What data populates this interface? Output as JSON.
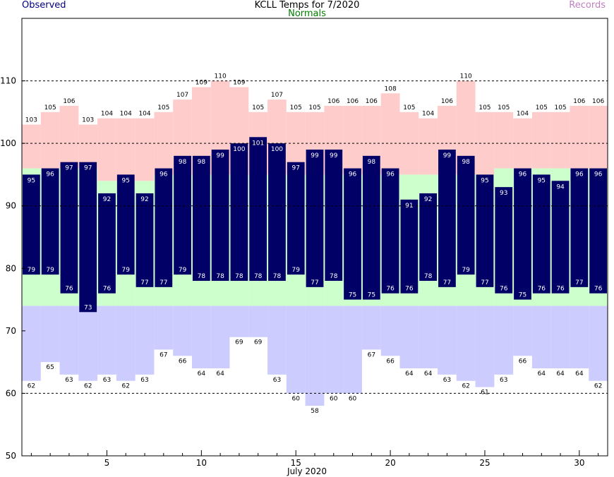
{
  "chart_data": {
    "type": "bar",
    "title": "KCLL Temps for 7/2020",
    "legend": {
      "observed": "Observed",
      "normals": "Normals",
      "records": "Records",
      "placement": "top"
    },
    "xlabel": "July 2020",
    "ylabel": "",
    "ylim": [
      50,
      120
    ],
    "xlim": [
      0.5,
      31.5
    ],
    "yticks": [
      50,
      60,
      70,
      80,
      90,
      100,
      110
    ],
    "xticks": [
      5,
      10,
      15,
      20,
      25,
      30
    ],
    "grid": "dashed horizontal at 60, 90, 100, 110",
    "days": [
      1,
      2,
      3,
      4,
      5,
      6,
      7,
      8,
      9,
      10,
      11,
      12,
      13,
      14,
      15,
      16,
      17,
      18,
      19,
      20,
      21,
      22,
      23,
      24,
      25,
      26,
      27,
      28,
      29,
      30,
      31
    ],
    "observed_high": [
      95,
      96,
      97,
      97,
      92,
      95,
      92,
      96,
      98,
      98,
      99,
      100,
      101,
      100,
      97,
      99,
      99,
      96,
      98,
      96,
      91,
      92,
      99,
      98,
      95,
      93,
      96,
      95,
      94,
      96,
      96
    ],
    "observed_low": [
      79,
      79,
      76,
      73,
      76,
      79,
      77,
      77,
      79,
      78,
      78,
      78,
      78,
      78,
      79,
      77,
      78,
      75,
      75,
      76,
      76,
      78,
      77,
      79,
      77,
      76,
      75,
      76,
      76,
      77,
      76
    ],
    "record_high": [
      103,
      105,
      106,
      103,
      104,
      104,
      104,
      105,
      107,
      109,
      110,
      109,
      105,
      107,
      105,
      105,
      106,
      106,
      106,
      108,
      105,
      104,
      106,
      110,
      105,
      105,
      104,
      105,
      105,
      106,
      106
    ],
    "record_low": [
      62,
      65,
      63,
      62,
      63,
      62,
      63,
      67,
      66,
      64,
      64,
      69,
      69,
      63,
      60,
      58,
      60,
      60,
      67,
      66,
      64,
      64,
      63,
      62,
      61,
      63,
      66,
      64,
      64,
      64,
      62
    ],
    "normal_high": [
      96,
      96,
      96,
      96,
      94,
      94,
      94,
      95,
      95,
      95,
      95,
      95,
      95,
      95,
      95,
      95,
      95,
      95,
      95,
      95,
      95,
      95,
      95,
      95,
      95,
      96,
      96,
      96,
      96,
      96,
      96
    ],
    "normal_low": [
      79,
      79,
      78,
      78,
      78,
      79,
      79,
      79,
      79,
      78,
      78,
      78,
      78,
      78,
      79,
      78,
      78,
      78,
      78,
      78,
      78,
      78,
      78,
      79,
      78,
      78,
      78,
      78,
      78,
      78,
      78
    ],
    "normal_low_band_top": 74,
    "colors": {
      "observed": "#000066",
      "normal": "#ccffcc",
      "record_high": "#ffcccc",
      "record_low": "#ccccff",
      "grid": "#000000",
      "observed_label": "#000080",
      "normals_label": "#008000",
      "records_label": "#c080c0"
    }
  }
}
